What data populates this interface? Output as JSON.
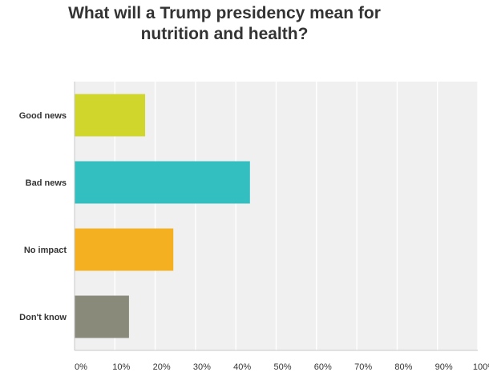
{
  "chart_data": {
    "type": "bar",
    "orientation": "horizontal",
    "title_lines": [
      "What will a Trump presidency mean for",
      "nutrition and health?"
    ],
    "categories": [
      "Good news",
      "Bad news",
      "No impact",
      "Don't know"
    ],
    "values": [
      17.5,
      43.5,
      24.5,
      13.5
    ],
    "colors": [
      "#d1d62c",
      "#33bfbf",
      "#f5b021",
      "#8a8a7a"
    ],
    "xlim": [
      0,
      100
    ],
    "xticks": [
      0,
      10,
      20,
      30,
      40,
      50,
      60,
      70,
      80,
      90,
      100
    ],
    "xtick_labels": [
      "0%",
      "10%",
      "20%",
      "30%",
      "40%",
      "50%",
      "60%",
      "70%",
      "80%",
      "90%",
      "100%"
    ],
    "xlabel": "",
    "ylabel": "",
    "grid": true,
    "plot_background": "#f0f0f0"
  }
}
